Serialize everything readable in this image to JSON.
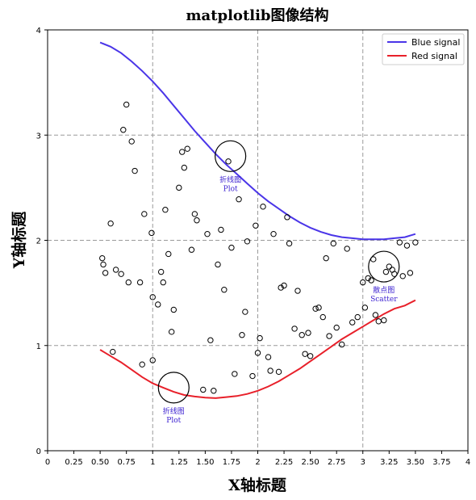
{
  "chart_data": {
    "type": "scatter",
    "title": "matplotlib图像结构",
    "xlabel": "X轴标题",
    "ylabel": "Y轴标题",
    "xlim": [
      0,
      4
    ],
    "ylim": [
      0,
      4
    ],
    "xticks": [
      "0",
      "0.25",
      "0.50",
      "0.75",
      "1",
      "1.25",
      "1.50",
      "1.75",
      "2",
      "2.25",
      "2.50",
      "2.75",
      "3",
      "3.25",
      "3.50",
      "3.75",
      "4"
    ],
    "yticks": [
      "0",
      "1",
      "2",
      "3",
      "4"
    ],
    "grid": "dashed at major ticks (0,1,2,3,4)",
    "legend_placement": "upper right",
    "series": [
      {
        "name": "Blue signal",
        "kind": "line",
        "color": "#4a35e8",
        "x": [
          0.5,
          0.6,
          0.7,
          0.8,
          0.9,
          1.0,
          1.1,
          1.2,
          1.3,
          1.4,
          1.5,
          1.6,
          1.7,
          1.8,
          1.9,
          2.0,
          2.1,
          2.2,
          2.3,
          2.4,
          2.5,
          2.6,
          2.7,
          2.8,
          2.9,
          3.0,
          3.1,
          3.2,
          3.3,
          3.4,
          3.5
        ],
        "y": [
          3.88,
          3.84,
          3.78,
          3.7,
          3.61,
          3.51,
          3.4,
          3.28,
          3.16,
          3.04,
          2.93,
          2.82,
          2.72,
          2.63,
          2.54,
          2.45,
          2.37,
          2.3,
          2.23,
          2.17,
          2.12,
          2.08,
          2.05,
          2.03,
          2.02,
          2.01,
          2.01,
          2.01,
          2.02,
          2.03,
          2.06
        ]
      },
      {
        "name": "Red signal",
        "kind": "line",
        "color": "#e8202a",
        "x": [
          0.5,
          0.6,
          0.7,
          0.8,
          0.9,
          1.0,
          1.1,
          1.2,
          1.3,
          1.4,
          1.5,
          1.6,
          1.7,
          1.8,
          1.9,
          2.0,
          2.1,
          2.2,
          2.3,
          2.4,
          2.5,
          2.6,
          2.7,
          2.8,
          2.9,
          3.0,
          3.1,
          3.2,
          3.3,
          3.4,
          3.5
        ],
        "y": [
          0.96,
          0.9,
          0.84,
          0.77,
          0.7,
          0.64,
          0.6,
          0.56,
          0.53,
          0.515,
          0.505,
          0.5,
          0.51,
          0.52,
          0.54,
          0.57,
          0.61,
          0.66,
          0.72,
          0.78,
          0.85,
          0.92,
          0.99,
          1.06,
          1.12,
          1.18,
          1.24,
          1.3,
          1.35,
          1.38,
          1.43
        ]
      },
      {
        "name": "",
        "kind": "scatter",
        "x": [
          0.75,
          0.72,
          0.8,
          0.83,
          0.6,
          0.52,
          0.55,
          0.53,
          0.65,
          0.7,
          0.77,
          0.62,
          0.88,
          0.92,
          0.99,
          0.9,
          1.0,
          1.05,
          1.08,
          1.1,
          1.12,
          1.15,
          1.18,
          1.2,
          1.25,
          1.28,
          1.3,
          1.33,
          1.37,
          1.4,
          1.42,
          1.48,
          1.52,
          1.55,
          1.58,
          1.62,
          1.65,
          1.68,
          1.72,
          1.75,
          1.78,
          1.82,
          1.85,
          1.88,
          1.9,
          1.95,
          1.98,
          2.0,
          2.02,
          2.05,
          2.1,
          2.12,
          2.15,
          2.2,
          2.22,
          2.25,
          2.28,
          2.3,
          2.35,
          2.38,
          2.42,
          2.45,
          2.48,
          2.5,
          2.55,
          2.58,
          2.62,
          2.65,
          2.68,
          2.72,
          2.75,
          2.8,
          2.85,
          2.9,
          2.95,
          3.0,
          3.02,
          3.05,
          3.08,
          3.1,
          3.12,
          3.15,
          3.2,
          3.22,
          3.25,
          3.28,
          3.3,
          3.35,
          3.38,
          3.42,
          3.45,
          3.5,
          1.0
        ],
        "y": [
          3.29,
          3.05,
          2.94,
          2.66,
          2.16,
          1.83,
          1.69,
          1.77,
          1.72,
          1.68,
          1.6,
          0.94,
          1.6,
          2.25,
          2.07,
          0.82,
          0.86,
          1.39,
          1.7,
          1.6,
          2.29,
          1.87,
          1.13,
          1.34,
          2.5,
          2.84,
          2.69,
          2.87,
          1.91,
          2.25,
          2.19,
          0.58,
          2.06,
          1.05,
          0.57,
          1.77,
          2.1,
          1.53,
          2.75,
          1.93,
          0.73,
          2.39,
          1.1,
          1.32,
          1.99,
          0.71,
          2.14,
          0.93,
          1.07,
          2.32,
          0.89,
          0.76,
          2.06,
          0.75,
          1.55,
          1.57,
          2.22,
          1.97,
          1.16,
          1.52,
          1.1,
          0.92,
          1.12,
          0.9,
          1.35,
          1.36,
          1.27,
          1.83,
          1.09,
          1.97,
          1.17,
          1.01,
          1.92,
          1.22,
          1.27,
          1.6,
          1.36,
          1.64,
          1.62,
          1.82,
          1.29,
          1.23,
          1.24,
          1.7,
          1.75,
          1.72,
          1.68,
          1.98,
          1.66,
          1.95,
          1.69,
          1.98,
          1.46
        ]
      }
    ],
    "annotations": [
      {
        "label": "折线图",
        "sublabel": "Plot",
        "x": 1.74,
        "y": 2.8,
        "target": "Blue signal"
      },
      {
        "label": "折线图",
        "sublabel": "Plot",
        "x": 1.2,
        "y": 0.6,
        "target": "Red signal"
      },
      {
        "label": "散点图",
        "sublabel": "Scatter",
        "x": 3.2,
        "y": 1.75,
        "target": "scatter"
      }
    ]
  }
}
